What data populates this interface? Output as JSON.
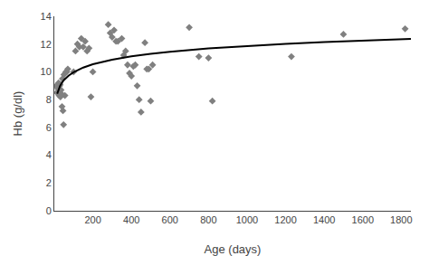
{
  "chart_data": {
    "type": "scatter",
    "xlabel": "Age (days)",
    "ylabel": "Hb (g/dl)",
    "xlim": [
      0,
      1850
    ],
    "ylim": [
      0,
      14
    ],
    "xticks": [
      200,
      400,
      600,
      800,
      1000,
      1200,
      1400,
      1600,
      1800
    ],
    "yticks": [
      0,
      2,
      4,
      6,
      8,
      10,
      12,
      14
    ],
    "grid": false,
    "series": [
      {
        "type": "scatter",
        "color": "#808080",
        "marker": "diamond",
        "x": [
          10,
          14,
          18,
          20,
          22,
          25,
          28,
          30,
          32,
          35,
          38,
          40,
          42,
          45,
          48,
          50,
          55,
          60,
          65,
          70,
          100,
          110,
          120,
          130,
          140,
          150,
          160,
          170,
          180,
          190,
          200,
          280,
          290,
          300,
          310,
          320,
          330,
          350,
          360,
          370,
          380,
          390,
          400,
          410,
          420,
          430,
          440,
          450,
          470,
          480,
          490,
          500,
          510,
          700,
          750,
          800,
          820,
          1230,
          1500,
          1820
        ],
        "values": [
          9.0,
          8.5,
          8.8,
          8.6,
          9.2,
          8.3,
          9.0,
          9.1,
          8.2,
          8.7,
          8.4,
          7.5,
          9.5,
          7.2,
          6.2,
          9.8,
          8.3,
          10.0,
          10.0,
          10.2,
          10.0,
          11.5,
          12.0,
          11.8,
          12.4,
          11.8,
          12.2,
          11.5,
          11.7,
          8.2,
          10.0,
          13.4,
          12.8,
          12.5,
          13.0,
          12.2,
          12.2,
          12.4,
          11.2,
          11.5,
          10.5,
          9.9,
          9.7,
          10.4,
          10.5,
          9.0,
          8.0,
          7.1,
          12.1,
          10.2,
          10.2,
          7.9,
          10.5,
          13.2,
          11.1,
          11.0,
          7.9,
          11.1,
          12.7,
          13.1
        ]
      },
      {
        "type": "line",
        "color": "#000000",
        "line_style": "solid",
        "x": [
          15,
          20,
          25,
          30,
          40,
          50,
          75,
          100,
          150,
          200,
          300,
          400,
          500,
          600,
          800,
          1000,
          1200,
          1400,
          1600,
          1850
        ],
        "values": [
          8.421,
          8.657,
          8.839,
          8.989,
          9.225,
          9.408,
          9.74,
          9.976,
          10.309,
          10.545,
          10.877,
          11.113,
          11.296,
          11.445,
          11.681,
          11.864,
          12.014,
          12.14,
          12.25,
          12.369
        ]
      }
    ]
  }
}
